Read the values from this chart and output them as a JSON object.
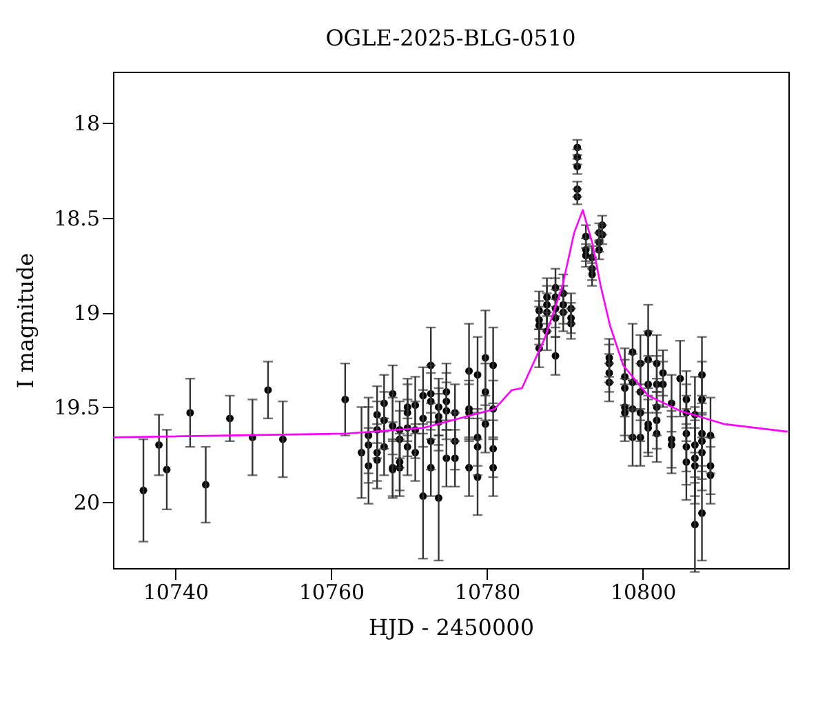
{
  "chart_data": {
    "type": "scatter",
    "title": "OGLE-2025-BLG-0510",
    "xlabel": "HJD - 2450000",
    "ylabel": "I magnitude",
    "xlim": [
      10732,
      10818.7
    ],
    "xticks": [
      10740,
      10760,
      10780,
      10800
    ],
    "ylim": [
      20.35,
      17.73
    ],
    "yticks": [
      18,
      18.5,
      19,
      19.5,
      20
    ],
    "grid": false,
    "marker": "circle",
    "series": [
      {
        "color": "#000000",
        "x": [
          10735.9,
          10737.9,
          10738.9,
          10741.9,
          10743.9,
          10747.0,
          10749.9,
          10751.9,
          10753.8,
          10761.8,
          10763.9,
          10764.8,
          10764.8,
          10764.8,
          10765.9,
          10765.9,
          10765.9,
          10765.9,
          10766.8,
          10766.8,
          10766.8,
          10767.9,
          10767.9,
          10767.9,
          10767.9,
          10768.8,
          10768.8,
          10768.8,
          10768.8,
          10769.8,
          10769.8,
          10769.8,
          10769.8,
          10770.8,
          10770.8,
          10770.8,
          10771.8,
          10771.8,
          10771.8,
          10772.8,
          10772.8,
          10772.8,
          10772.8,
          10772.8,
          10773.8,
          10773.8,
          10773.8,
          10773.8,
          10774.8,
          10774.8,
          10774.8,
          10774.8,
          10775.9,
          10775.9,
          10775.9,
          10777.7,
          10777.7,
          10777.7,
          10777.7,
          10778.8,
          10778.8,
          10778.8,
          10778.8,
          10779.8,
          10779.8,
          10779.8,
          10780.8,
          10780.8,
          10780.8,
          10780.8,
          10786.7,
          10786.7,
          10786.7,
          10786.7,
          10787.7,
          10787.7,
          10787.7,
          10787.7,
          10788.8,
          10788.8,
          10788.8,
          10788.8,
          10788.8,
          10789.8,
          10789.8,
          10789.8,
          10790.8,
          10790.8,
          10790.8,
          10791.6,
          10791.6,
          10791.6,
          10791.6,
          10791.6,
          10792.7,
          10792.7,
          10792.7,
          10793.5,
          10793.5,
          10793.5,
          10794.4,
          10794.4,
          10794.4,
          10794.8,
          10794.8,
          10795.7,
          10795.7,
          10795.7,
          10795.7,
          10797.7,
          10797.7,
          10797.7,
          10797.7,
          10798.7,
          10798.7,
          10798.7,
          10798.7,
          10799.7,
          10799.7,
          10799.7,
          10799.7,
          10800.7,
          10800.7,
          10800.7,
          10800.7,
          10800.7,
          10801.8,
          10801.8,
          10801.8,
          10801.8,
          10801.8,
          10802.6,
          10802.6,
          10803.7,
          10803.7,
          10803.7,
          10804.8,
          10805.6,
          10805.6,
          10805.6,
          10805.6,
          10805.6,
          10806.7,
          10806.7,
          10806.7,
          10806.7,
          10806.7,
          10807.6,
          10807.6,
          10807.6,
          10807.6,
          10807.6,
          10807.6,
          10808.7,
          10808.7,
          10808.7
        ],
        "values": [
          19.94,
          19.7,
          19.83,
          19.53,
          19.91,
          19.56,
          19.66,
          19.41,
          19.67,
          19.46,
          19.74,
          19.65,
          19.7,
          19.81,
          19.54,
          19.62,
          19.74,
          19.78,
          19.48,
          19.57,
          19.71,
          19.43,
          19.6,
          19.82,
          19.83,
          19.62,
          19.67,
          19.79,
          19.82,
          19.5,
          19.53,
          19.61,
          19.71,
          19.49,
          19.62,
          19.74,
          19.44,
          19.56,
          19.97,
          19.28,
          19.43,
          19.47,
          19.68,
          19.82,
          19.5,
          19.55,
          19.58,
          19.98,
          19.42,
          19.47,
          19.52,
          19.77,
          19.53,
          19.68,
          19.77,
          19.31,
          19.51,
          19.53,
          19.82,
          19.33,
          19.66,
          19.71,
          19.87,
          19.24,
          19.42,
          19.59,
          19.28,
          19.51,
          19.72,
          19.82,
          18.99,
          19.04,
          19.07,
          19.19,
          18.92,
          18.96,
          19.0,
          19.1,
          18.87,
          18.92,
          18.98,
          19.03,
          19.23,
          18.9,
          18.96,
          19.0,
          18.98,
          19.03,
          19.06,
          18.13,
          18.18,
          18.23,
          18.35,
          18.39,
          18.6,
          18.67,
          18.7,
          18.71,
          18.77,
          18.8,
          18.58,
          18.63,
          18.67,
          18.54,
          18.59,
          19.24,
          19.27,
          19.32,
          19.37,
          19.34,
          19.4,
          19.5,
          19.53,
          19.21,
          19.37,
          19.51,
          19.66,
          19.27,
          19.42,
          19.53,
          19.66,
          19.11,
          19.25,
          19.38,
          19.59,
          19.61,
          19.27,
          19.38,
          19.5,
          19.57,
          19.64,
          19.32,
          19.38,
          19.48,
          19.67,
          19.7,
          19.35,
          19.46,
          19.53,
          19.64,
          19.71,
          19.79,
          19.54,
          19.7,
          19.77,
          19.81,
          20.12,
          19.33,
          19.46,
          19.64,
          19.68,
          19.74,
          20.06,
          19.65,
          19.81,
          19.86
        ],
        "errors": [
          0.27,
          0.16,
          0.21,
          0.18,
          0.2,
          0.12,
          0.2,
          0.15,
          0.2,
          0.19,
          0.24,
          0.2,
          0.2,
          0.2,
          0.15,
          0.15,
          0.15,
          0.15,
          0.15,
          0.15,
          0.15,
          0.15,
          0.15,
          0.15,
          0.15,
          0.15,
          0.15,
          0.15,
          0.15,
          0.15,
          0.15,
          0.15,
          0.15,
          0.15,
          0.15,
          0.15,
          0.15,
          0.15,
          0.33,
          0.2,
          0.15,
          0.15,
          0.15,
          0.15,
          0.15,
          0.15,
          0.15,
          0.33,
          0.15,
          0.15,
          0.15,
          0.15,
          0.15,
          0.15,
          0.15,
          0.25,
          0.15,
          0.15,
          0.15,
          0.2,
          0.15,
          0.15,
          0.2,
          0.25,
          0.15,
          0.15,
          0.2,
          0.15,
          0.15,
          0.15,
          0.1,
          0.1,
          0.1,
          0.1,
          0.1,
          0.1,
          0.1,
          0.1,
          0.1,
          0.1,
          0.1,
          0.1,
          0.1,
          0.1,
          0.1,
          0.1,
          0.08,
          0.08,
          0.08,
          0.04,
          0.04,
          0.04,
          0.04,
          0.04,
          0.06,
          0.06,
          0.06,
          0.06,
          0.06,
          0.06,
          0.05,
          0.05,
          0.05,
          0.05,
          0.05,
          0.1,
          0.1,
          0.1,
          0.1,
          0.15,
          0.15,
          0.15,
          0.15,
          0.15,
          0.15,
          0.15,
          0.15,
          0.15,
          0.15,
          0.15,
          0.15,
          0.15,
          0.15,
          0.15,
          0.15,
          0.15,
          0.15,
          0.15,
          0.15,
          0.15,
          0.15,
          0.12,
          0.12,
          0.15,
          0.15,
          0.15,
          0.2,
          0.15,
          0.15,
          0.2,
          0.2,
          0.2,
          0.2,
          0.2,
          0.2,
          0.2,
          0.25,
          0.2,
          0.2,
          0.2,
          0.2,
          0.2,
          0.25,
          0.2,
          0.15,
          0.15
        ]
      },
      {
        "type": "line",
        "color": "#ff00ff",
        "line_style": "solid",
        "marker": "none",
        "x": [
          10732,
          10762,
          10771.8,
          10781,
          10783.2,
          10784.5,
          10787.4,
          10789.7,
          10791.2,
          10792.3,
          10793.5,
          10794.6,
          10795.8,
          10797.5,
          10800.7,
          10804.8,
          10810.5,
          10818.6
        ],
        "values": [
          19.66,
          19.64,
          19.61,
          19.51,
          19.41,
          19.4,
          19.14,
          18.86,
          18.58,
          18.46,
          18.63,
          18.86,
          19.07,
          19.28,
          19.44,
          19.52,
          19.59,
          19.63
        ]
      }
    ]
  }
}
